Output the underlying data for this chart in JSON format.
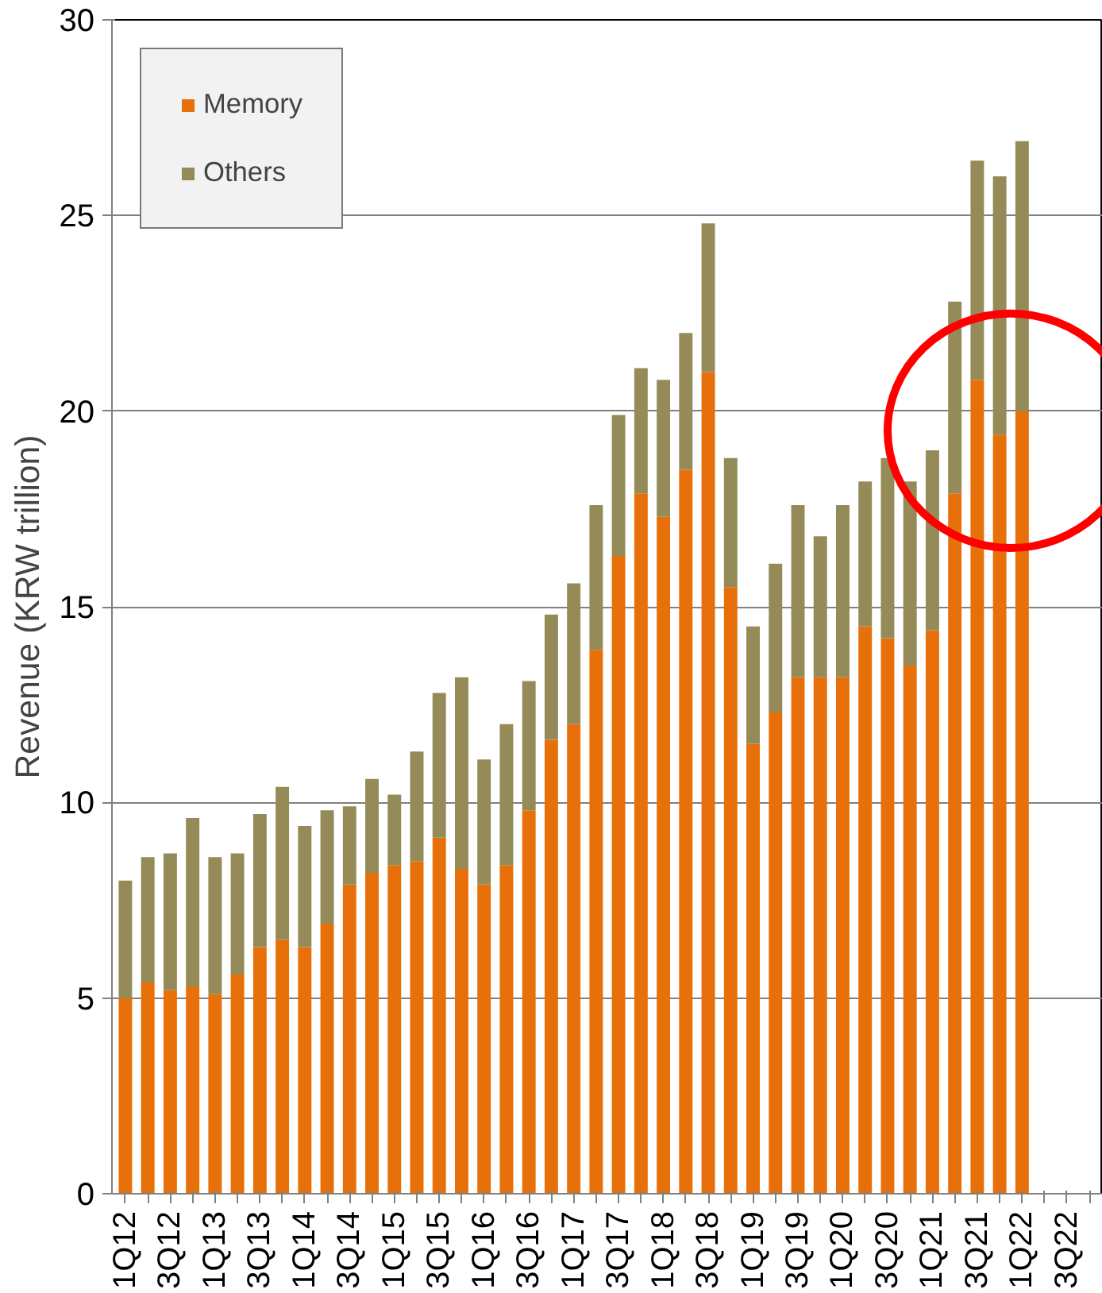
{
  "chart_data": {
    "type": "bar",
    "stacked": true,
    "ylabel": "Revenue (KRW trillion)",
    "categories": [
      "1Q12",
      null,
      "3Q12",
      null,
      "1Q13",
      null,
      "3Q13",
      null,
      "1Q14",
      null,
      "3Q14",
      null,
      "1Q15",
      null,
      "3Q15",
      null,
      "1Q16",
      null,
      "3Q16",
      null,
      "1Q17",
      null,
      "3Q17",
      null,
      "1Q18",
      null,
      "3Q18",
      null,
      "1Q19",
      null,
      "3Q19",
      null,
      "1Q20",
      null,
      "3Q20",
      null,
      "1Q21",
      null,
      "3Q21",
      null,
      "1Q22",
      null,
      "3Q22",
      null
    ],
    "series": [
      {
        "name": "Memory",
        "color": "#e8700a",
        "values": [
          5.0,
          5.4,
          5.2,
          5.3,
          5.1,
          5.6,
          6.3,
          6.5,
          6.3,
          6.9,
          7.9,
          8.2,
          8.4,
          8.5,
          9.1,
          8.3,
          7.9,
          8.4,
          9.8,
          11.6,
          12.0,
          13.9,
          16.3,
          17.9,
          17.3,
          18.5,
          21.0,
          15.5,
          11.5,
          12.3,
          13.2,
          13.2,
          13.2,
          14.5,
          14.2,
          13.5,
          14.4,
          17.9,
          20.8,
          19.4,
          20.0,
          null,
          null,
          null
        ]
      },
      {
        "name": "Others",
        "color": "#958b58",
        "values": [
          3.0,
          3.2,
          3.5,
          4.3,
          3.5,
          3.1,
          3.4,
          3.9,
          3.1,
          2.9,
          2.0,
          2.4,
          1.8,
          2.8,
          3.7,
          4.9,
          3.2,
          3.6,
          3.3,
          3.2,
          3.6,
          3.7,
          3.6,
          3.2,
          3.5,
          3.5,
          3.8,
          3.3,
          3.0,
          3.8,
          4.4,
          3.6,
          4.4,
          3.7,
          4.6,
          4.7,
          4.6,
          4.9,
          5.6,
          6.6,
          6.9,
          null,
          null,
          null
        ]
      }
    ],
    "ylim": [
      0,
      30
    ],
    "yticks": [
      0,
      5,
      10,
      15,
      20,
      25,
      30
    ],
    "grid": "y",
    "legend": "top left"
  }
}
